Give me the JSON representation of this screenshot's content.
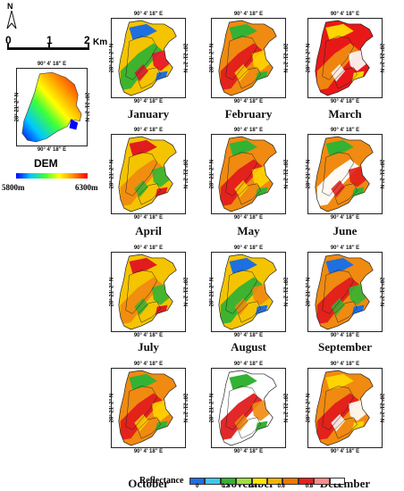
{
  "north_label": "N",
  "scalebar": {
    "ticks": [
      "0",
      "1",
      "2"
    ],
    "unit": "Km"
  },
  "coords": {
    "lon": "90° 4' 18'' E",
    "lat": "28° 21' 2'' N"
  },
  "dem": {
    "title": "DEM",
    "min_label": "5800m",
    "max_label": "6300m",
    "gradient": [
      "#0000ff",
      "#00c8ff",
      "#3cff3c",
      "#ffff00",
      "#ff8c00",
      "#ff0000"
    ]
  },
  "months": [
    {
      "name": "January",
      "base": "#f5c400",
      "h1": "#33b233",
      "h2": "#e8102e",
      "h3": "#1e6fe0"
    },
    {
      "name": "February",
      "base": "#f08a10",
      "h1": "#e01c1c",
      "h2": "#ffd400",
      "h3": "#33b233"
    },
    {
      "name": "March",
      "base": "#e81818",
      "h1": "#f08a10",
      "h2": "#ffffff",
      "h3": "#ffd400"
    },
    {
      "name": "April",
      "base": "#f5c400",
      "h1": "#f08a10",
      "h2": "#33b233",
      "h3": "#e01c1c"
    },
    {
      "name": "May",
      "base": "#f08a10",
      "h1": "#e01c1c",
      "h2": "#ffd400",
      "h3": "#33b233"
    },
    {
      "name": "June",
      "base": "#f08a10",
      "h1": "#ffffff",
      "h2": "#e01c1c",
      "h3": "#33b233"
    },
    {
      "name": "July",
      "base": "#f5c400",
      "h1": "#f08a10",
      "h2": "#33b233",
      "h3": "#e01c1c"
    },
    {
      "name": "August",
      "base": "#f5c400",
      "h1": "#33b233",
      "h2": "#f08a10",
      "h3": "#1e6fe0"
    },
    {
      "name": "September",
      "base": "#f08a10",
      "h1": "#e01c1c",
      "h2": "#33b233",
      "h3": "#1e6fe0"
    },
    {
      "name": "October",
      "base": "#f08a10",
      "h1": "#e01c1c",
      "h2": "#ffd400",
      "h3": "#33b233"
    },
    {
      "name": "November",
      "base": "#ffffff",
      "h1": "#e01c1c",
      "h2": "#f08a10",
      "h3": "#33b233"
    },
    {
      "name": "December",
      "base": "#f08a10",
      "h1": "#e01c1c",
      "h2": "#ffffff",
      "h3": "#ffd400"
    }
  ],
  "legend": {
    "title": "Reflectance",
    "colors": [
      "#1e6fe0",
      "#3cc8f0",
      "#33b233",
      "#9fe03c",
      "#ffe600",
      "#f5b400",
      "#f07800",
      "#e82020",
      "#ff8c8c",
      "#ffffff"
    ],
    "tick_labels": [
      "0",
      "0.2",
      "0.4",
      "0.6",
      "0.8",
      "1.0"
    ]
  }
}
